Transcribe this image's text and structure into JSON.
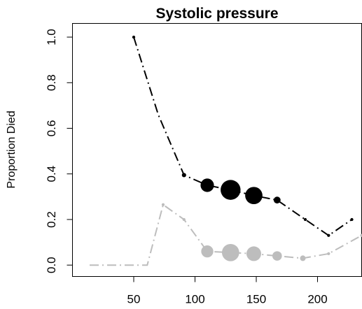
{
  "chart_data": {
    "type": "scatter",
    "title": "Systolic pressure",
    "xlabel": "",
    "ylabel": "Proportion Died",
    "xlim": [
      0,
      236
    ],
    "ylim": [
      -0.05,
      1.06
    ],
    "x_ticks": [
      50,
      100,
      150,
      200
    ],
    "y_ticks": [
      0.0,
      0.2,
      0.4,
      0.6,
      0.8,
      1.0
    ],
    "x_tick_labels": [
      "50",
      "100",
      "150",
      "200"
    ],
    "y_tick_labels": [
      "0.0",
      "0.2",
      "0.4",
      "0.6",
      "0.8",
      "1.0"
    ],
    "grid": false,
    "series": [
      {
        "color": "#000000",
        "line_style": "dashdot",
        "points": [
          {
            "x": 50,
            "y": 1.0,
            "size": 1
          },
          {
            "x": 70,
            "y": 0.66,
            "size": 0
          },
          {
            "x": 91,
            "y": 0.395,
            "size": 2
          },
          {
            "x": 110,
            "y": 0.35,
            "size": 9
          },
          {
            "x": 129,
            "y": 0.33,
            "size": 14
          },
          {
            "x": 148,
            "y": 0.305,
            "size": 12
          },
          {
            "x": 167,
            "y": 0.285,
            "size": 4
          },
          {
            "x": 190,
            "y": 0.2,
            "size": 1
          },
          {
            "x": 209,
            "y": 0.13,
            "size": 1
          },
          {
            "x": 228,
            "y": 0.2,
            "size": 1
          }
        ]
      },
      {
        "color": "#bdbdbd",
        "line_style": "dashdot",
        "points": [
          {
            "x": 14,
            "y": 0.0,
            "size": 0
          },
          {
            "x": 61,
            "y": 0.0,
            "size": 0
          },
          {
            "x": 74,
            "y": 0.265,
            "size": 1
          },
          {
            "x": 91,
            "y": 0.2,
            "size": 1
          },
          {
            "x": 110,
            "y": 0.06,
            "size": 8
          },
          {
            "x": 129,
            "y": 0.055,
            "size": 12
          },
          {
            "x": 148,
            "y": 0.05,
            "size": 10
          },
          {
            "x": 167,
            "y": 0.04,
            "size": 6
          },
          {
            "x": 188,
            "y": 0.03,
            "size": 3
          },
          {
            "x": 209,
            "y": 0.05,
            "size": 1
          },
          {
            "x": 236,
            "y": 0.13,
            "size": 1
          }
        ]
      }
    ]
  }
}
